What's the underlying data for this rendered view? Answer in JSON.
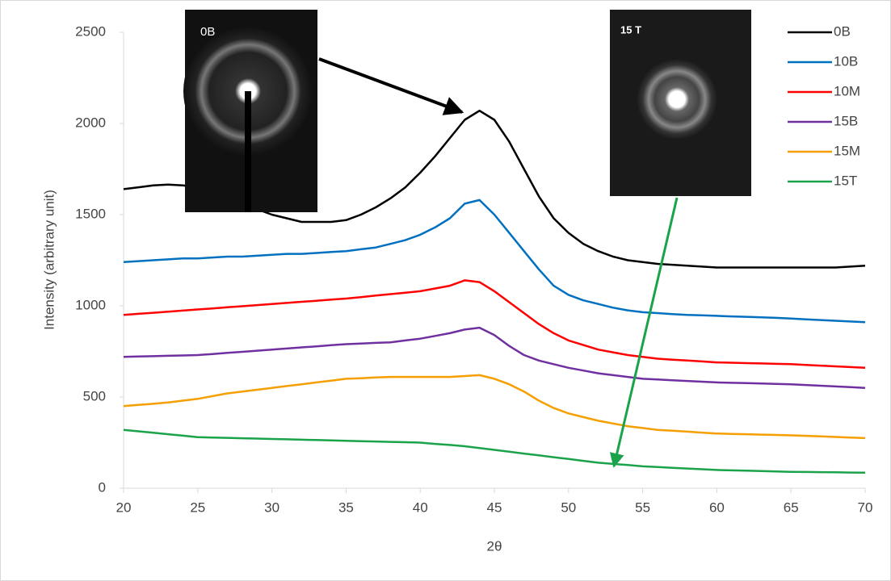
{
  "chart_data": {
    "type": "line",
    "x_label": "2θ",
    "y_label": "Intensity (arbitrary unit)",
    "annotations": [
      "0B",
      "15 T"
    ],
    "xlim": [
      20,
      70
    ],
    "xticks": [
      20,
      25,
      30,
      35,
      40,
      45,
      50,
      55,
      60,
      65,
      70
    ],
    "ylim": [
      0,
      2500
    ],
    "yticks": [
      0,
      500,
      1000,
      1500,
      2000,
      2500
    ],
    "grid": false,
    "legend": "top-right",
    "x": [
      20,
      21,
      22,
      23,
      24,
      25,
      26,
      27,
      28,
      29,
      30,
      31,
      32,
      33,
      34,
      35,
      36,
      37,
      38,
      39,
      40,
      41,
      42,
      43,
      44,
      45,
      46,
      47,
      48,
      49,
      50,
      51,
      52,
      53,
      54,
      55,
      56,
      57,
      58,
      59,
      60,
      61,
      62,
      63,
      64,
      65,
      66,
      67,
      68,
      69,
      70
    ],
    "series": [
      {
        "name": "0B",
        "color": "#000000",
        "values": [
          1640,
          1650,
          1660,
          1665,
          1660,
          1650,
          1620,
          1590,
          1560,
          1530,
          1500,
          1480,
          1460,
          1460,
          1460,
          1470,
          1500,
          1540,
          1590,
          1650,
          1730,
          1820,
          1920,
          2020,
          2070,
          2020,
          1900,
          1750,
          1600,
          1480,
          1400,
          1340,
          1300,
          1270,
          1250,
          1240,
          1230,
          1225,
          1220,
          1215,
          1210,
          1210,
          1210,
          1210,
          1210,
          1210,
          1210,
          1210,
          1210,
          1215,
          1220
        ]
      },
      {
        "name": "10B",
        "color": "#0070c0",
        "values": [
          1240,
          1245,
          1250,
          1255,
          1260,
          1260,
          1265,
          1270,
          1270,
          1275,
          1280,
          1285,
          1285,
          1290,
          1295,
          1300,
          1310,
          1320,
          1340,
          1360,
          1390,
          1430,
          1480,
          1560,
          1580,
          1500,
          1400,
          1300,
          1200,
          1110,
          1060,
          1030,
          1010,
          990,
          975,
          965,
          960,
          955,
          950,
          948,
          945,
          942,
          940,
          937,
          934,
          930,
          926,
          922,
          918,
          914,
          910
        ]
      },
      {
        "name": "10M",
        "color": "#ff0000",
        "values": [
          950,
          956,
          962,
          968,
          974,
          980,
          986,
          992,
          998,
          1004,
          1010,
          1016,
          1022,
          1028,
          1034,
          1040,
          1048,
          1056,
          1064,
          1072,
          1080,
          1095,
          1110,
          1140,
          1130,
          1080,
          1020,
          960,
          900,
          850,
          810,
          785,
          760,
          745,
          730,
          720,
          710,
          705,
          700,
          695,
          690,
          688,
          686,
          684,
          682,
          680,
          676,
          672,
          668,
          664,
          660
        ]
      },
      {
        "name": "15B",
        "color": "#7030a0",
        "values": [
          720,
          722,
          724,
          726,
          728,
          730,
          736,
          742,
          748,
          754,
          760,
          766,
          772,
          778,
          784,
          790,
          793,
          797,
          800,
          810,
          820,
          835,
          850,
          870,
          880,
          840,
          780,
          730,
          700,
          680,
          660,
          645,
          630,
          620,
          610,
          600,
          596,
          592,
          588,
          584,
          580,
          578,
          576,
          574,
          572,
          570,
          566,
          562,
          558,
          554,
          550
        ]
      },
      {
        "name": "15M",
        "color": "#f5a000",
        "values": [
          450,
          457,
          463,
          470,
          480,
          490,
          505,
          520,
          530,
          540,
          550,
          560,
          570,
          580,
          590,
          600,
          603,
          607,
          610,
          610,
          610,
          610,
          610,
          615,
          620,
          600,
          570,
          530,
          480,
          440,
          410,
          390,
          370,
          355,
          340,
          330,
          320,
          315,
          310,
          305,
          300,
          298,
          296,
          294,
          292,
          290,
          287,
          284,
          281,
          278,
          275
        ]
      },
      {
        "name": "15T",
        "color": "#1aa34a",
        "values": [
          320,
          312,
          304,
          296,
          288,
          280,
          278,
          276,
          274,
          272,
          270,
          268,
          266,
          264,
          262,
          260,
          258,
          256,
          254,
          252,
          250,
          243,
          237,
          230,
          220,
          210,
          200,
          190,
          180,
          170,
          160,
          150,
          140,
          133,
          127,
          120,
          116,
          112,
          108,
          104,
          100,
          98,
          96,
          94,
          92,
          90,
          89,
          88,
          87,
          86,
          85
        ]
      }
    ]
  }
}
